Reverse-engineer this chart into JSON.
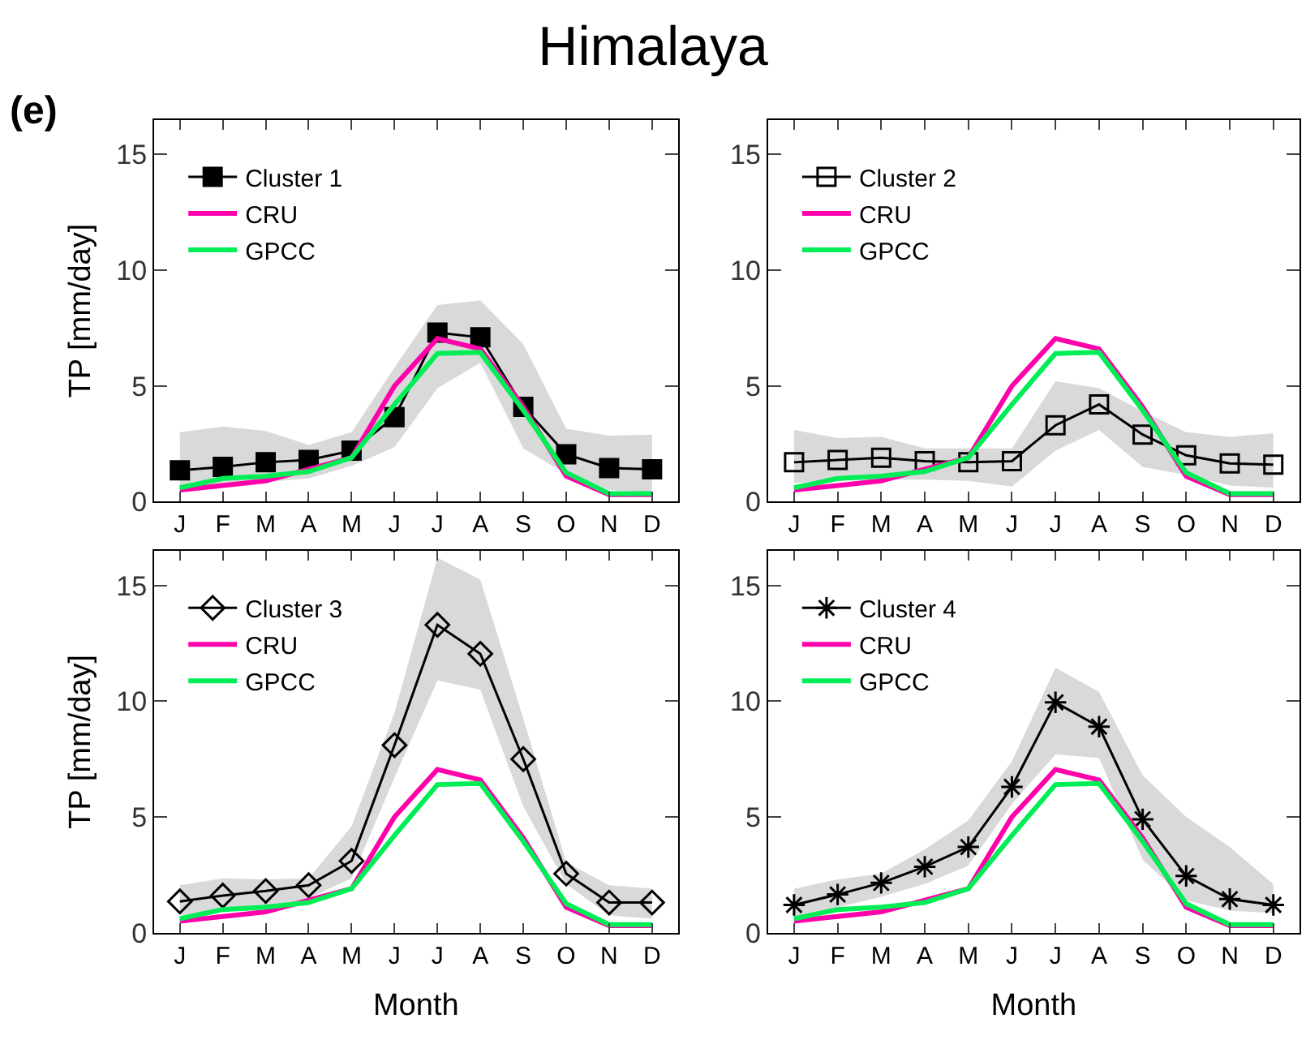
{
  "chart_data": [
    {
      "type": "line",
      "title": "Himalaya",
      "annotations": [
        "(e)"
      ],
      "ylabel": "TP [mm/day]",
      "categories": [
        "J",
        "F",
        "M",
        "A",
        "M",
        "J",
        "J",
        "A",
        "S",
        "O",
        "N",
        "D"
      ],
      "ylim": [
        0,
        16.5
      ],
      "yticks": [
        0,
        5,
        10,
        15
      ],
      "legend": "top left",
      "tick_labels": "xy",
      "series": [
        {
          "name": "Cluster 1",
          "color": "#000000",
          "marker": "square",
          "values": [
            1.35,
            1.5,
            1.7,
            1.8,
            2.2,
            3.65,
            7.3,
            7.1,
            4.1,
            2.05,
            1.45,
            1.4
          ],
          "lower": [
            0.6,
            0.75,
            0.85,
            1.0,
            1.55,
            2.35,
            4.9,
            6.0,
            2.3,
            1.2,
            0.5,
            0.4
          ],
          "upper": [
            3.0,
            3.25,
            3.05,
            2.45,
            3.0,
            5.8,
            8.5,
            8.7,
            6.8,
            3.15,
            2.85,
            2.9
          ]
        },
        {
          "name": "CRU",
          "color": "#ff00aa",
          "values": [
            0.5,
            0.7,
            0.9,
            1.4,
            1.9,
            5.0,
            7.05,
            6.6,
            4.1,
            1.1,
            0.3,
            0.3
          ]
        },
        {
          "name": "GPCC",
          "color": "#00ee55",
          "values": [
            0.6,
            1.0,
            1.1,
            1.3,
            1.9,
            4.2,
            6.4,
            6.45,
            3.95,
            1.25,
            0.35,
            0.35
          ]
        }
      ]
    },
    {
      "type": "line",
      "categories": [
        "J",
        "F",
        "M",
        "A",
        "M",
        "J",
        "J",
        "A",
        "S",
        "O",
        "N",
        "D"
      ],
      "ylim": [
        0,
        16.5
      ],
      "yticks": [
        0,
        5,
        10,
        15
      ],
      "legend": "top left",
      "tick_labels": "xy",
      "series": [
        {
          "name": "Cluster 2",
          "color": "#000000",
          "marker": "square-open",
          "values": [
            1.7,
            1.8,
            1.9,
            1.75,
            1.7,
            1.75,
            3.3,
            4.2,
            2.9,
            2.0,
            1.65,
            1.6
          ],
          "lower": [
            0.8,
            0.9,
            0.95,
            0.95,
            0.9,
            0.65,
            2.2,
            3.1,
            1.5,
            1.15,
            0.7,
            0.6
          ],
          "upper": [
            3.1,
            2.75,
            2.8,
            2.3,
            2.3,
            2.3,
            5.2,
            4.9,
            3.9,
            3.0,
            2.8,
            2.95
          ]
        },
        {
          "name": "CRU",
          "color": "#ff00aa",
          "values": [
            0.5,
            0.7,
            0.9,
            1.4,
            1.9,
            5.0,
            7.05,
            6.6,
            4.1,
            1.1,
            0.3,
            0.3
          ]
        },
        {
          "name": "GPCC",
          "color": "#00ee55",
          "values": [
            0.6,
            1.0,
            1.1,
            1.3,
            1.9,
            4.2,
            6.4,
            6.45,
            3.95,
            1.25,
            0.35,
            0.35
          ]
        }
      ]
    },
    {
      "type": "line",
      "xlabel": "Month",
      "ylabel": "TP [mm/day]",
      "categories": [
        "J",
        "F",
        "M",
        "A",
        "M",
        "J",
        "J",
        "A",
        "S",
        "O",
        "N",
        "D"
      ],
      "ylim": [
        0,
        16.5
      ],
      "yticks": [
        0,
        5,
        10,
        15
      ],
      "legend": "top left",
      "tick_labels": "xy",
      "series": [
        {
          "name": "Cluster 3",
          "color": "#000000",
          "marker": "diamond-open",
          "values": [
            1.35,
            1.6,
            1.8,
            2.05,
            3.1,
            8.1,
            13.3,
            12.05,
            7.5,
            2.55,
            1.3,
            1.3
          ],
          "lower": [
            0.75,
            0.9,
            1.1,
            1.5,
            2.35,
            6.7,
            10.9,
            10.5,
            5.45,
            2.1,
            0.75,
            0.6
          ],
          "upper": [
            2.05,
            2.35,
            2.3,
            2.35,
            4.6,
            9.5,
            16.2,
            15.25,
            9.25,
            3.05,
            2.05,
            1.9
          ]
        },
        {
          "name": "CRU",
          "color": "#ff00aa",
          "values": [
            0.5,
            0.7,
            0.9,
            1.4,
            1.9,
            5.0,
            7.05,
            6.6,
            4.1,
            1.1,
            0.3,
            0.3
          ]
        },
        {
          "name": "GPCC",
          "color": "#00ee55",
          "values": [
            0.6,
            1.0,
            1.1,
            1.3,
            1.9,
            4.2,
            6.4,
            6.45,
            3.95,
            1.25,
            0.35,
            0.35
          ]
        }
      ]
    },
    {
      "type": "line",
      "xlabel": "Month",
      "categories": [
        "J",
        "F",
        "M",
        "A",
        "M",
        "J",
        "J",
        "A",
        "S",
        "O",
        "N",
        "D"
      ],
      "ylim": [
        0,
        16.5
      ],
      "yticks": [
        0,
        5,
        10,
        15
      ],
      "legend": "top left",
      "tick_labels": "xy",
      "series": [
        {
          "name": "Cluster 4",
          "color": "#000000",
          "marker": "cross",
          "values": [
            1.2,
            1.65,
            2.15,
            2.85,
            3.7,
            6.3,
            9.95,
            8.9,
            4.9,
            2.45,
            1.45,
            1.2
          ],
          "lower": [
            0.6,
            1.1,
            1.55,
            2.1,
            2.9,
            5.55,
            7.7,
            7.55,
            3.15,
            1.4,
            0.95,
            0.85
          ],
          "upper": [
            1.9,
            2.3,
            2.55,
            3.6,
            4.85,
            7.4,
            11.45,
            10.4,
            6.8,
            5.0,
            3.7,
            2.1
          ]
        },
        {
          "name": "CRU",
          "color": "#ff00aa",
          "values": [
            0.5,
            0.7,
            0.9,
            1.4,
            1.9,
            5.0,
            7.05,
            6.6,
            4.1,
            1.1,
            0.3,
            0.3
          ]
        },
        {
          "name": "GPCC",
          "color": "#00ee55",
          "values": [
            0.6,
            1.0,
            1.1,
            1.3,
            1.9,
            4.2,
            6.4,
            6.45,
            3.95,
            1.25,
            0.35,
            0.35
          ]
        }
      ]
    }
  ]
}
